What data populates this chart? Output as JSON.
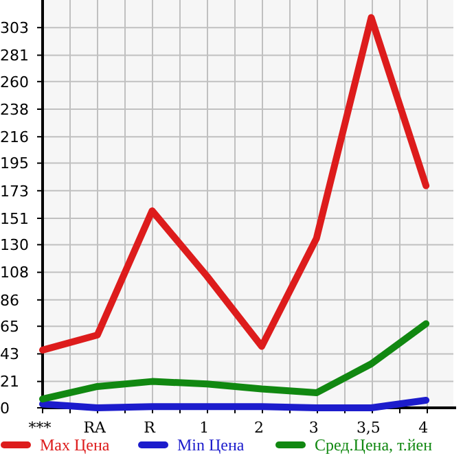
{
  "chart_data": {
    "type": "line",
    "categories": [
      "***",
      "RA",
      "R",
      "1",
      "2",
      "3",
      "3,5",
      "4"
    ],
    "series": [
      {
        "name": "Max Цена",
        "color": "#dd1c1c",
        "values": [
          46,
          58,
          157,
          105,
          49,
          135,
          311,
          177
        ]
      },
      {
        "name": "Min Цена",
        "color": "#1c1ccc",
        "values": [
          3,
          0,
          1,
          1,
          1,
          0,
          0,
          6
        ]
      },
      {
        "name": "Сред.Цена, т.йен",
        "color": "#118811",
        "values": [
          7,
          17,
          21,
          19,
          15,
          12,
          35,
          67
        ]
      }
    ],
    "ylim": [
      0,
      325
    ],
    "yticks": [
      0,
      21,
      43,
      65,
      86,
      108,
      130,
      151,
      173,
      195,
      216,
      238,
      260,
      281,
      303
    ],
    "grid": true,
    "legend": "bottom",
    "marker": "none",
    "line_style": "solid"
  }
}
